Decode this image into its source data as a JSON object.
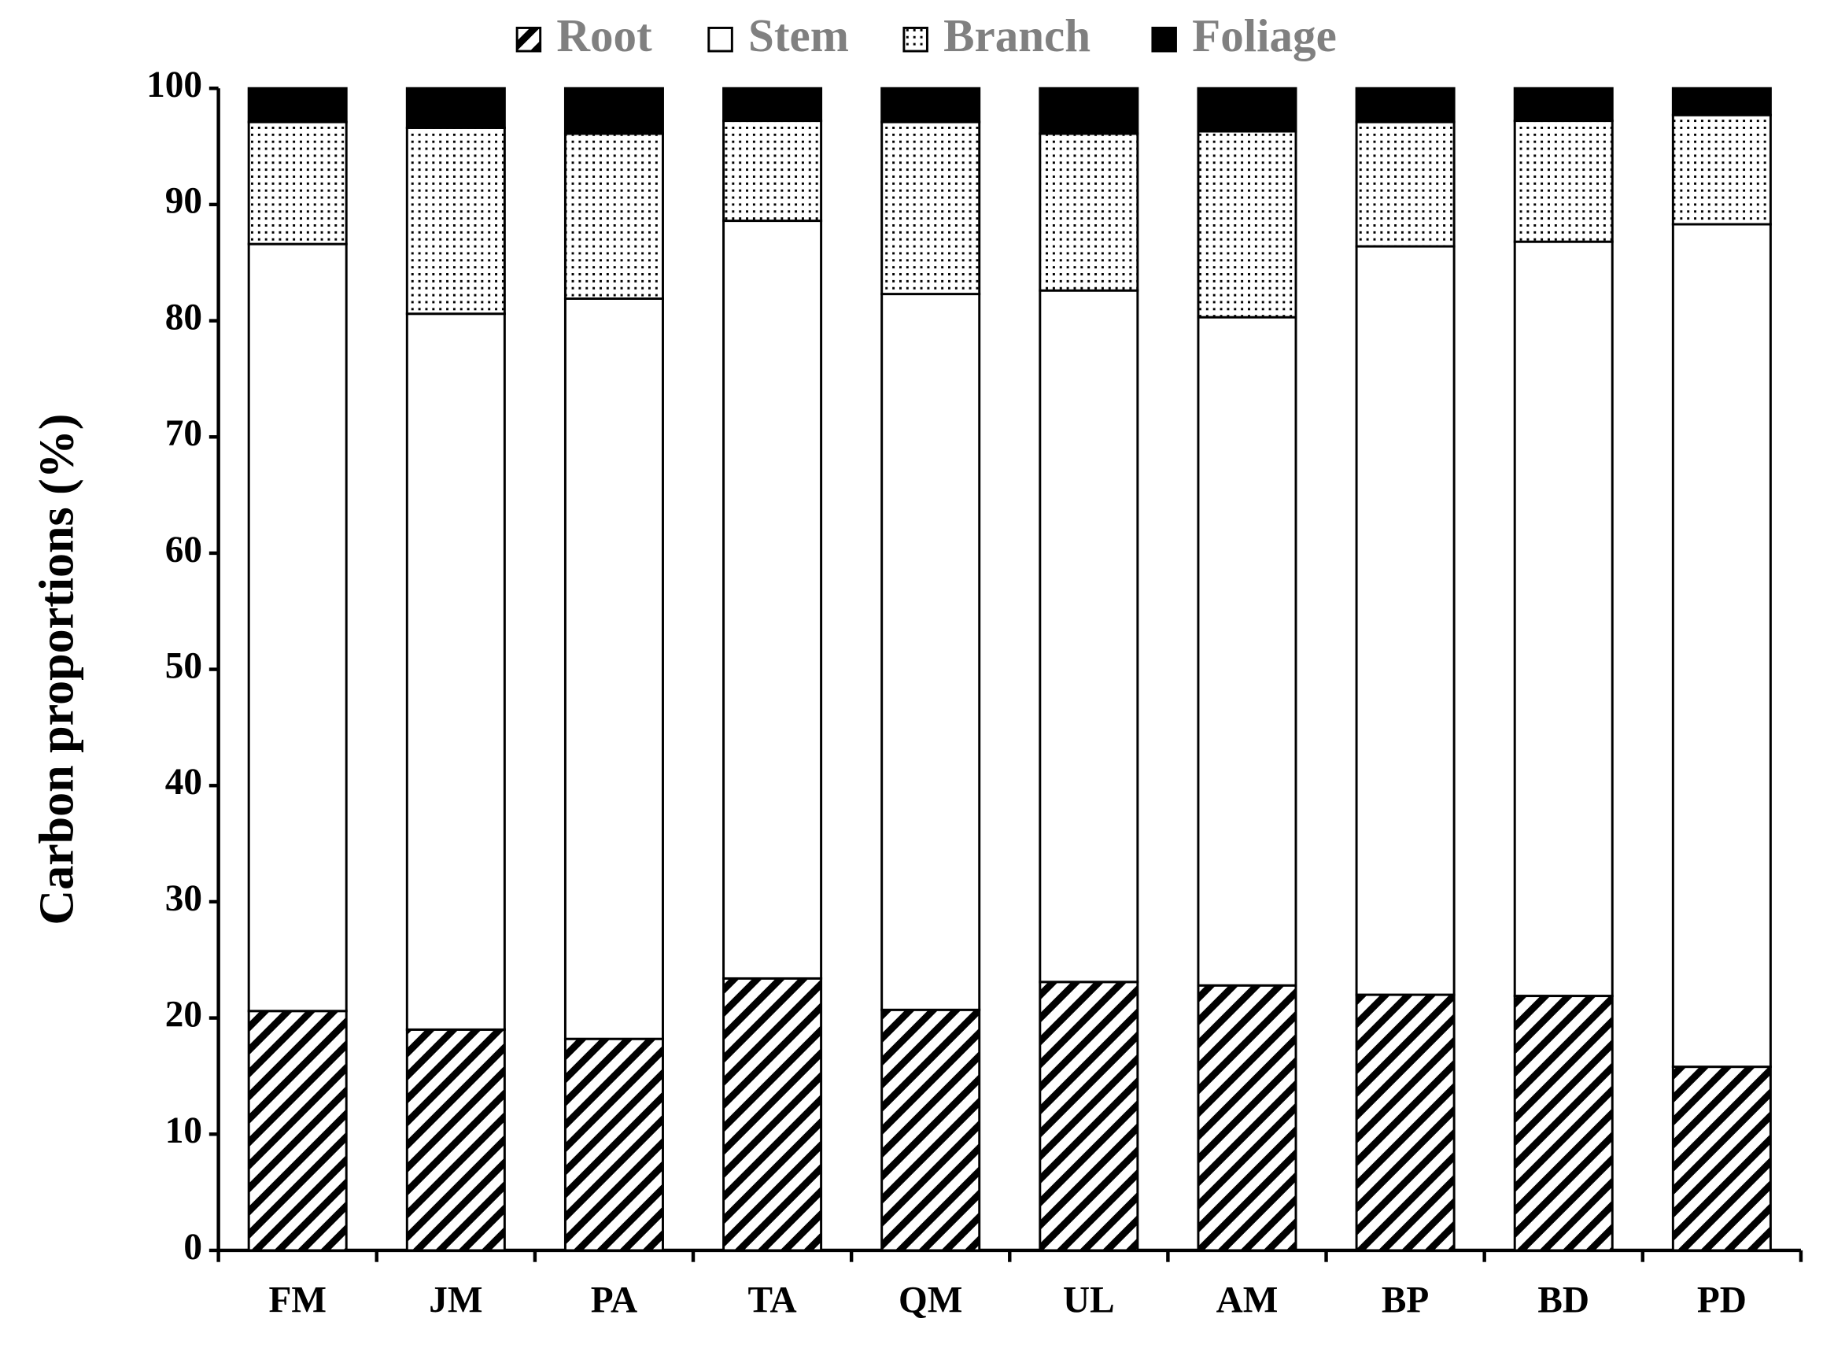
{
  "chart_data": {
    "type": "stacked_bar",
    "y_label": "Carbon proportions (%)",
    "categories": [
      "FM",
      "JM",
      "PA",
      "TA",
      "QM",
      "UL",
      "AM",
      "BP",
      "BD",
      "PD"
    ],
    "series": [
      {
        "name": "Root",
        "color": "#000000",
        "pattern": "hatch",
        "values": [
          20.6,
          19.0,
          18.2,
          23.4,
          20.7,
          23.1,
          22.8,
          22.0,
          21.9,
          15.8
        ]
      },
      {
        "name": "Stem",
        "color": "#ffffff",
        "pattern": "solid",
        "values": [
          66.0,
          61.6,
          63.7,
          65.2,
          61.6,
          59.5,
          57.5,
          64.4,
          64.9,
          72.5
        ]
      },
      {
        "name": "Branch",
        "color": "#000000",
        "pattern": "dots",
        "values": [
          10.5,
          16.0,
          14.2,
          8.6,
          14.8,
          13.5,
          16.0,
          10.7,
          10.4,
          9.4
        ]
      },
      {
        "name": "Foliage",
        "color": "#000000",
        "pattern": "solid",
        "values": [
          2.9,
          3.4,
          3.9,
          2.8,
          2.9,
          3.9,
          3.7,
          2.9,
          2.8,
          2.3
        ]
      }
    ],
    "ylim": [
      0,
      100
    ],
    "yticks": [
      0,
      10,
      20,
      30,
      40,
      50,
      60,
      70,
      80,
      90,
      100
    ],
    "legend": "top",
    "grid": false
  }
}
